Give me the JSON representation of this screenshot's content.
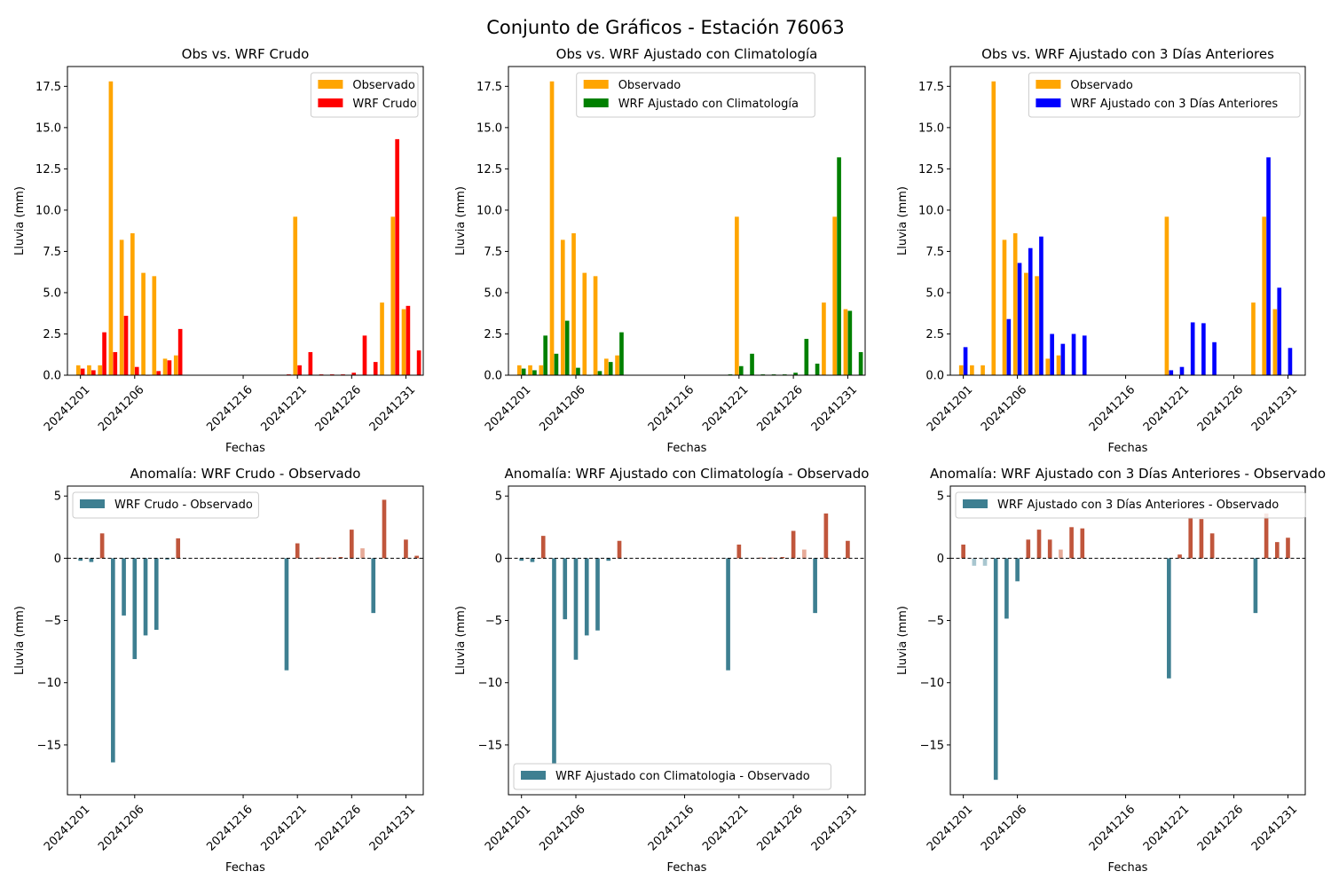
{
  "suptitle": "Conjunto de Gráficos - Estación 76063",
  "colors": {
    "observed": "#ffa500",
    "wrf_raw": "#ff0000",
    "wrf_clim": "#008000",
    "wrf_3d": "#0000ff",
    "anomaly_negative": "#3e7f91",
    "anomaly_positive": "#c0563c",
    "anomaly_small_negative": "#a8c6cf",
    "anomaly_small_positive": "#e6aa98"
  },
  "chart_data": [
    {
      "type": "bar",
      "title": "Obs vs. WRF Crudo",
      "xlabel": "Fechas",
      "ylabel": "Lluvia (mm)",
      "x_start": "2024-12-01",
      "xticks": [
        "20241201",
        "20241206",
        "20241216",
        "20241221",
        "20241226",
        "20241231"
      ],
      "ylim": [
        0,
        18.7
      ],
      "yticks": [
        "0.0",
        "2.5",
        "5.0",
        "7.5",
        "10.0",
        "12.5",
        "15.0",
        "17.5"
      ],
      "legend_position": "upper right",
      "series": [
        {
          "name": "Observado",
          "color": "#ffa500",
          "values": [
            0.6,
            0.6,
            0.6,
            17.8,
            8.2,
            8.6,
            6.2,
            6.0,
            1.0,
            1.2,
            null,
            null,
            null,
            null,
            null,
            null,
            null,
            null,
            null,
            null,
            9.6,
            null,
            null,
            null,
            null,
            null,
            null,
            null,
            4.4,
            9.6,
            4.0,
            null
          ]
        },
        {
          "name": "WRF Crudo",
          "color": "#ff0000",
          "values": [
            0.4,
            0.3,
            2.6,
            1.4,
            3.6,
            0.5,
            0.0,
            0.25,
            0.9,
            2.8,
            null,
            null,
            null,
            null,
            null,
            null,
            null,
            null,
            null,
            0.05,
            0.6,
            1.4,
            0.05,
            0.05,
            0.05,
            0.15,
            2.4,
            0.8,
            null,
            14.3,
            4.2,
            1.5
          ]
        }
      ]
    },
    {
      "type": "bar",
      "title": "Obs vs. WRF Ajustado con Climatología",
      "xlabel": "Fechas",
      "ylabel": "Lluvia (mm)",
      "x_start": "2024-12-01",
      "xticks": [
        "20241201",
        "20241206",
        "20241216",
        "20241221",
        "20241226",
        "20241231"
      ],
      "ylim": [
        0,
        18.7
      ],
      "yticks": [
        "0.0",
        "2.5",
        "5.0",
        "7.5",
        "10.0",
        "12.5",
        "15.0",
        "17.5"
      ],
      "legend_position": "upper center",
      "series": [
        {
          "name": "Observado",
          "color": "#ffa500",
          "values": [
            0.6,
            0.6,
            0.6,
            17.8,
            8.2,
            8.6,
            6.2,
            6.0,
            1.0,
            1.2,
            null,
            null,
            null,
            null,
            null,
            null,
            null,
            null,
            null,
            null,
            9.6,
            null,
            null,
            null,
            null,
            null,
            null,
            null,
            4.4,
            9.6,
            4.0,
            null
          ]
        },
        {
          "name": "WRF Ajustado con Climatología",
          "color": "#008000",
          "values": [
            0.4,
            0.3,
            2.4,
            1.3,
            3.3,
            0.45,
            0.0,
            0.25,
            0.8,
            2.6,
            null,
            null,
            null,
            null,
            null,
            null,
            null,
            null,
            null,
            0.05,
            0.55,
            1.3,
            0.05,
            0.05,
            0.05,
            0.15,
            2.2,
            0.7,
            null,
            13.2,
            3.9,
            1.4
          ]
        }
      ]
    },
    {
      "type": "bar",
      "title": "Obs vs. WRF Ajustado con 3 Días Anteriores",
      "xlabel": "Fechas",
      "ylabel": "Lluvia (mm)",
      "x_start": "2024-12-01",
      "xticks": [
        "20241201",
        "20241206",
        "20241216",
        "20241221",
        "20241226",
        "20241231"
      ],
      "ylim": [
        0,
        18.7
      ],
      "yticks": [
        "0.0",
        "2.5",
        "5.0",
        "7.5",
        "10.0",
        "12.5",
        "15.0",
        "17.5"
      ],
      "legend_position": "upper right",
      "series": [
        {
          "name": "Observado",
          "color": "#ffa500",
          "values": [
            0.6,
            0.6,
            0.6,
            17.8,
            8.2,
            8.6,
            6.2,
            6.0,
            1.0,
            1.2,
            null,
            null,
            null,
            null,
            null,
            null,
            null,
            null,
            null,
            9.6,
            null,
            null,
            null,
            null,
            null,
            null,
            null,
            4.4,
            9.6,
            4.0,
            null,
            null
          ]
        },
        {
          "name": "WRF Ajustado con 3 Días Anteriores",
          "color": "#0000ff",
          "values": [
            1.7,
            null,
            null,
            null,
            3.4,
            6.8,
            7.7,
            8.4,
            2.5,
            1.9,
            2.5,
            2.4,
            null,
            null,
            null,
            null,
            null,
            null,
            null,
            0.3,
            0.5,
            3.2,
            3.15,
            2.0,
            null,
            null,
            null,
            null,
            13.2,
            5.3,
            1.65,
            null
          ]
        }
      ]
    },
    {
      "type": "bar",
      "title": "Anomalía: WRF Crudo - Observado",
      "xlabel": "Fechas",
      "ylabel": "Lluvia (mm)",
      "x_start": "2024-12-01",
      "xticks": [
        "20241201",
        "20241206",
        "20241216",
        "20241221",
        "20241226",
        "20241231"
      ],
      "ylim": [
        -19,
        5.8
      ],
      "yticks": [
        -15,
        -10,
        -5,
        0,
        5
      ],
      "reference_line": 0,
      "legend_position": "upper left",
      "series": [
        {
          "name": "WRF Crudo - Observado",
          "values": [
            -0.2,
            -0.3,
            2.0,
            -16.4,
            -4.6,
            -8.1,
            -6.2,
            -5.75,
            -0.1,
            1.6,
            null,
            null,
            null,
            null,
            null,
            null,
            null,
            null,
            null,
            -9.0,
            1.2,
            null,
            0.05,
            0.05,
            0.1,
            2.3,
            0.8,
            -4.4,
            4.7,
            null,
            1.5,
            0.2
          ]
        }
      ]
    },
    {
      "type": "bar",
      "title": "Anomalía: WRF Ajustado con Climatología - Observado",
      "xlabel": "Fechas",
      "ylabel": "Lluvia (mm)",
      "x_start": "2024-12-01",
      "xticks": [
        "20241201",
        "20241206",
        "20241216",
        "20241221",
        "20241226",
        "20241231"
      ],
      "ylim": [
        -19,
        5.8
      ],
      "yticks": [
        -15,
        -10,
        -5,
        0,
        5
      ],
      "reference_line": 0,
      "legend_position": "lower left",
      "series": [
        {
          "name": "WRF Ajustado con Climatologia - Observado",
          "values": [
            -0.2,
            -0.3,
            1.8,
            -16.5,
            -4.9,
            -8.15,
            -6.2,
            -5.8,
            -0.2,
            1.4,
            null,
            null,
            null,
            null,
            null,
            null,
            null,
            null,
            null,
            -9.0,
            1.1,
            null,
            0.05,
            0.05,
            0.1,
            2.2,
            0.7,
            -4.4,
            3.6,
            null,
            1.4,
            null
          ]
        }
      ]
    },
    {
      "type": "bar",
      "title": "Anomalía: WRF Ajustado con 3 Días Anteriores - Observado",
      "xlabel": "Fechas",
      "ylabel": "Lluvia (mm)",
      "x_start": "2024-12-01",
      "xticks": [
        "20241201",
        "20241206",
        "20241216",
        "20241221",
        "20241226",
        "20241231"
      ],
      "ylim": [
        -19,
        5.8
      ],
      "yticks": [
        -15,
        -10,
        -5,
        0,
        5
      ],
      "reference_line": 0,
      "legend_position": "upper left",
      "series": [
        {
          "name": "WRF Ajustado con 3 Días Anteriores - Observado",
          "values": [
            1.1,
            -0.6,
            -0.6,
            -17.8,
            -4.85,
            -1.85,
            1.5,
            2.3,
            1.5,
            0.7,
            2.5,
            2.4,
            null,
            null,
            null,
            null,
            null,
            null,
            null,
            -9.65,
            0.3,
            3.2,
            3.15,
            2.0,
            null,
            null,
            null,
            -4.4,
            3.6,
            1.3,
            1.65,
            null
          ]
        }
      ]
    }
  ]
}
